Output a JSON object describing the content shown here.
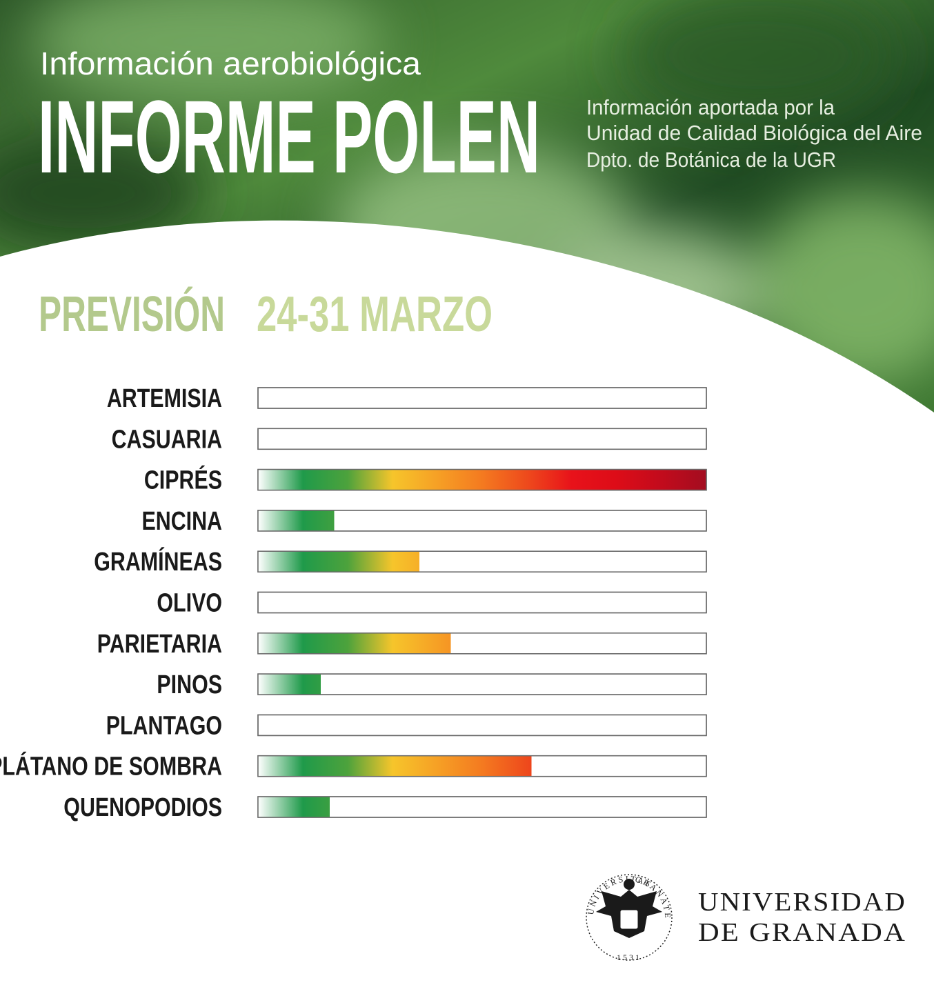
{
  "header": {
    "kicker": "Información aerobiológica",
    "title": "INFORME POLEN",
    "credits": [
      "Información aportada por la",
      "Unidad de Calidad Biológica del Aire",
      "Dpto. de Botánica de la UGR"
    ]
  },
  "chart_data": {
    "type": "bar",
    "orientation": "horizontal",
    "title": "PREVISIÓN",
    "subtitle": "24-31 MARZO",
    "categories": [
      "ARTEMISIA",
      "CASUARIA",
      "CIPRÉS",
      "ENCINA",
      "GRAMÍNEAS",
      "OLIVO",
      "PARIETARIA",
      "PINOS",
      "PLANTAGO",
      "PLÁTANO DE SOMBRA",
      "QUENOPODIOS"
    ],
    "values": [
      0,
      0,
      100,
      17,
      36,
      0,
      43,
      14,
      0,
      61,
      16
    ],
    "xlim": [
      0,
      100
    ],
    "gradient": [
      "#ffffff",
      "#1f9a4a",
      "#4da23c",
      "#f6c52b",
      "#f6a025",
      "#f47a20",
      "#ee4a1c",
      "#e8121a",
      "#dd0c18",
      "#c20b1c",
      "#a30d20"
    ]
  },
  "footer": {
    "university": [
      "UNIVERSIDAD",
      "DE GRANADA"
    ],
    "seal": [
      "UNIVERSITAS",
      "GRANATENSIS",
      "1531"
    ]
  }
}
